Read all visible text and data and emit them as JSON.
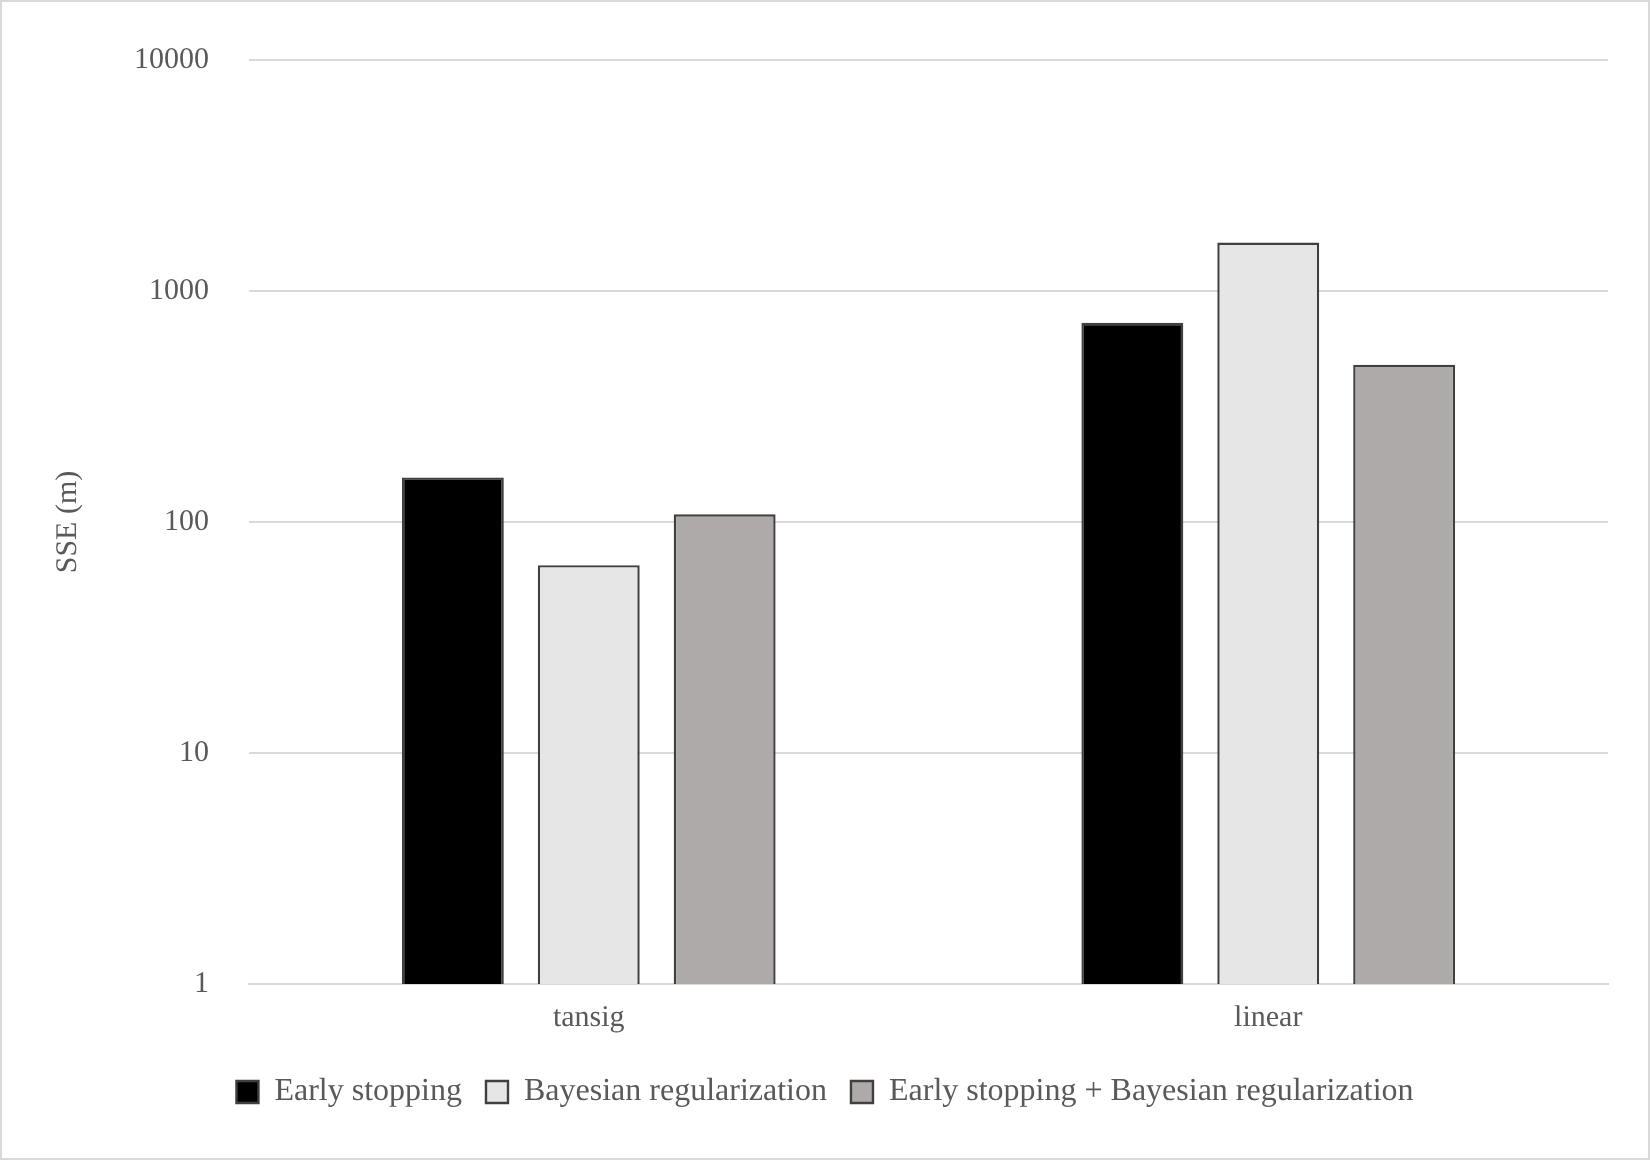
{
  "chart_data": {
    "type": "bar",
    "ylabel": "SSE (m)",
    "categories": [
      "tansig",
      "linear"
    ],
    "series": [
      {
        "name": "Early stopping",
        "color": "#000000",
        "values": [
          156,
          728
        ]
      },
      {
        "name": "Bayesian regularization",
        "color": "#e6e6e6",
        "values": [
          65,
          1620
        ]
      },
      {
        "name": "Early stopping + Bayesian regularization",
        "color": "#aeaaaa",
        "values": [
          108,
          480
        ]
      }
    ],
    "log": "y",
    "ylim": [
      1,
      10000
    ],
    "yticks": [
      1,
      10,
      100,
      1000,
      10000
    ],
    "grid": "y",
    "legend": "bottom"
  }
}
